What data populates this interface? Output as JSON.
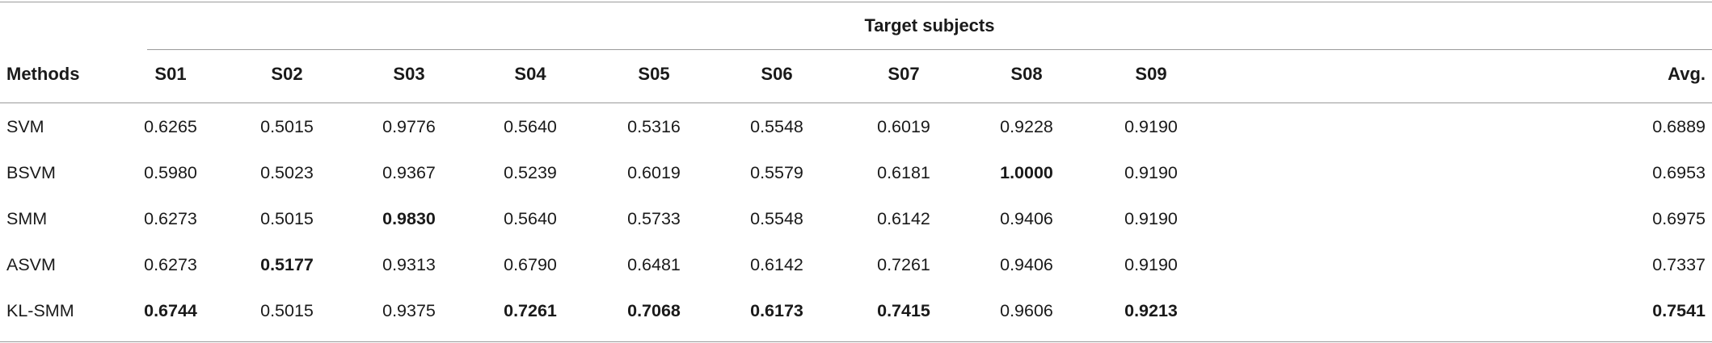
{
  "table": {
    "group_header": "Target subjects",
    "columns": [
      "Methods",
      "S01",
      "S02",
      "S03",
      "S04",
      "S05",
      "S06",
      "S07",
      "S08",
      "S09",
      "Avg."
    ],
    "rows": [
      {
        "method": "SVM",
        "values": [
          "0.6265",
          "0.5015",
          "0.9776",
          "0.5640",
          "0.5316",
          "0.5548",
          "0.6019",
          "0.9228",
          "0.9190",
          "0.6889"
        ],
        "bold": [
          false,
          false,
          false,
          false,
          false,
          false,
          false,
          false,
          false,
          false
        ]
      },
      {
        "method": "BSVM",
        "values": [
          "0.5980",
          "0.5023",
          "0.9367",
          "0.5239",
          "0.6019",
          "0.5579",
          "0.6181",
          "1.0000",
          "0.9190",
          "0.6953"
        ],
        "bold": [
          false,
          false,
          false,
          false,
          false,
          false,
          false,
          true,
          false,
          false
        ]
      },
      {
        "method": "SMM",
        "values": [
          "0.6273",
          "0.5015",
          "0.9830",
          "0.5640",
          "0.5733",
          "0.5548",
          "0.6142",
          "0.9406",
          "0.9190",
          "0.6975"
        ],
        "bold": [
          false,
          false,
          true,
          false,
          false,
          false,
          false,
          false,
          false,
          false
        ]
      },
      {
        "method": "ASVM",
        "values": [
          "0.6273",
          "0.5177",
          "0.9313",
          "0.6790",
          "0.6481",
          "0.6142",
          "0.7261",
          "0.9406",
          "0.9190",
          "0.7337"
        ],
        "bold": [
          false,
          true,
          false,
          false,
          false,
          false,
          false,
          false,
          false,
          false
        ]
      },
      {
        "method": "KL-SMM",
        "values": [
          "0.6744",
          "0.5015",
          "0.9375",
          "0.7261",
          "0.7068",
          "0.6173",
          "0.7415",
          "0.9606",
          "0.9213",
          "0.7541"
        ],
        "bold": [
          true,
          false,
          false,
          true,
          true,
          true,
          true,
          false,
          true,
          true
        ]
      }
    ]
  }
}
